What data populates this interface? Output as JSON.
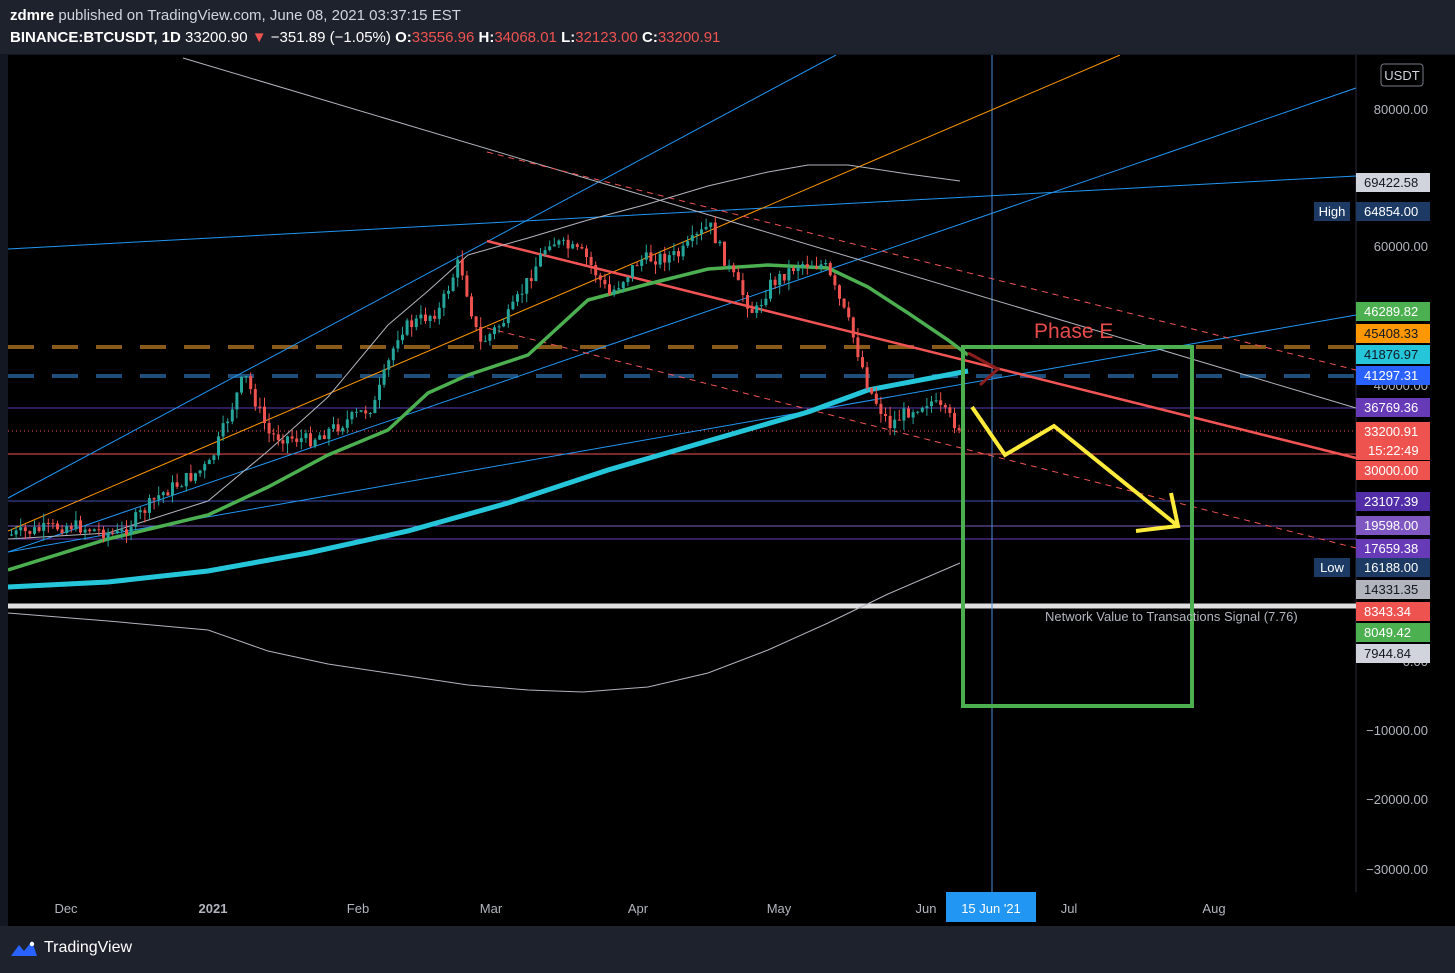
{
  "header": {
    "author": "zdmre",
    "published_text": "published on TradingView.com, June 08, 2021 03:37:15 EST",
    "symbol": "BINANCE:BTCUSDT, 1D",
    "last": "33200.90",
    "arrow": "▼",
    "change": "−351.89 (−1.05%)",
    "o_label": "O:",
    "o_value": "33556.96",
    "h_label": "H:",
    "h_value": "34068.01",
    "l_label": "L:",
    "l_value": "32123.00",
    "c_label": "C:",
    "c_value": "33200.91"
  },
  "footer": {
    "brand": "TradingView"
  },
  "chart_data": {
    "type": "candlestick",
    "currency_label": "USDT",
    "y_ticks": [
      "80000.00",
      "60000.00",
      "40000.00",
      "0.00",
      "−10000.00",
      "−20000.00",
      "−30000.00"
    ],
    "x_ticks": [
      "Dec",
      "2021",
      "Feb",
      "Mar",
      "Apr",
      "May",
      "Jun",
      "Jul",
      "Aug"
    ],
    "crosshair_label": "15 Jun '21",
    "price_labels": [
      {
        "text": "69422.58",
        "bg": "#d1d4dc",
        "fg": "#131722"
      },
      {
        "text": "High",
        "value": "64854.00",
        "bg": "#1c3a64",
        "fg": "#ffffff"
      },
      {
        "text": "46289.82",
        "bg": "#4caf50",
        "fg": "#ffffff"
      },
      {
        "text": "45408.33",
        "bg": "#ff9800",
        "fg": "#131722"
      },
      {
        "text": "41876.97",
        "bg": "#26c6da",
        "fg": "#131722"
      },
      {
        "text": "41297.31",
        "bg": "#2962ff",
        "fg": "#ffffff"
      },
      {
        "text": "36769.36",
        "bg": "#673ab7",
        "fg": "#ffffff"
      },
      {
        "text": "33200.91",
        "sub": "15:22:49",
        "bg": "#ef5350",
        "fg": "#ffffff"
      },
      {
        "text": "30000.00",
        "bg": "#ef5350",
        "fg": "#ffffff"
      },
      {
        "text": "23107.39",
        "bg": "#512da8",
        "fg": "#ffffff"
      },
      {
        "text": "19598.00",
        "bg": "#7e57c2",
        "fg": "#ffffff"
      },
      {
        "text": "17659.38",
        "bg": "#673ab7",
        "fg": "#ffffff"
      },
      {
        "text": "Low",
        "value": "16188.00",
        "bg": "#1c3a64",
        "fg": "#ffffff"
      },
      {
        "text": "14331.35",
        "bg": "#b2b5be",
        "fg": "#131722"
      },
      {
        "text": "8343.34",
        "bg": "#ef5350",
        "fg": "#ffffff"
      },
      {
        "text": "8049.42",
        "bg": "#4caf50",
        "fg": "#ffffff"
      },
      {
        "text": "7944.84",
        "bg": "#d1d4dc",
        "fg": "#131722"
      }
    ],
    "annotations": {
      "phase": "Phase E",
      "indicator": "Network Value to Transactions Signal (7.76)"
    },
    "colors": {
      "up": "#26a69a",
      "down": "#ef5350",
      "ma_green": "#4caf50",
      "ma_cyan": "#26c6da",
      "accent_yellow": "#ffeb3b",
      "trend_red": "#f05454"
    }
  }
}
